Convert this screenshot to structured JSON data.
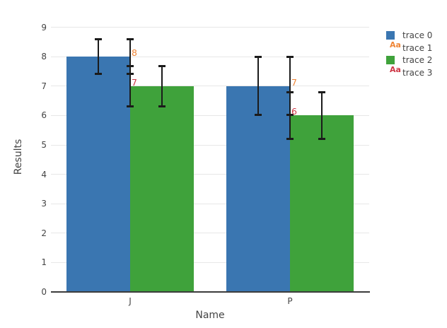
{
  "figure": {
    "background": "#ffffff",
    "text_color": "#444444",
    "grid_color": "#e7e7e7",
    "axis_line_color": "#3c3c3c",
    "error_bar_color": "#1b1b1b"
  },
  "chart_data": {
    "type": "bar",
    "barmode": "group",
    "title": "",
    "xlabel": "Name",
    "ylabel": "Results",
    "categories": [
      "J",
      "P"
    ],
    "yticks": [
      0,
      1,
      2,
      3,
      4,
      5,
      6,
      7,
      8,
      9
    ],
    "ylim": [
      0,
      9.2
    ],
    "grid": true,
    "legend_position": "right",
    "series": [
      {
        "name": "trace 0",
        "mark": "bar",
        "color": "#3a76b1",
        "values": [
          8,
          7
        ],
        "error_y": [
          0.6,
          1.0
        ]
      },
      {
        "name": "trace 1",
        "mark": "text",
        "color": "#ef8536",
        "values": [
          8,
          7
        ],
        "error_y": [
          0.6,
          1.0
        ],
        "text": [
          "8",
          "7"
        ]
      },
      {
        "name": "trace 2",
        "mark": "bar",
        "color": "#3fa23b",
        "values": [
          7,
          6
        ],
        "error_y": [
          0.7,
          0.8
        ]
      },
      {
        "name": "trace 3",
        "mark": "text",
        "color": "#ce3745",
        "values": [
          7,
          6
        ],
        "error_y": [
          0.7,
          0.8
        ],
        "text": [
          "7",
          "6"
        ]
      }
    ]
  },
  "legend": {
    "items": [
      {
        "label": "trace 0",
        "symbol": "square",
        "color": "#3a76b1"
      },
      {
        "label": "trace 1",
        "symbol": "Aa",
        "color": "#ef8536"
      },
      {
        "label": "trace 2",
        "symbol": "square",
        "color": "#3fa23b"
      },
      {
        "label": "trace 3",
        "symbol": "Aa",
        "color": "#ce3745"
      }
    ],
    "aa_glyph": "Aa"
  }
}
